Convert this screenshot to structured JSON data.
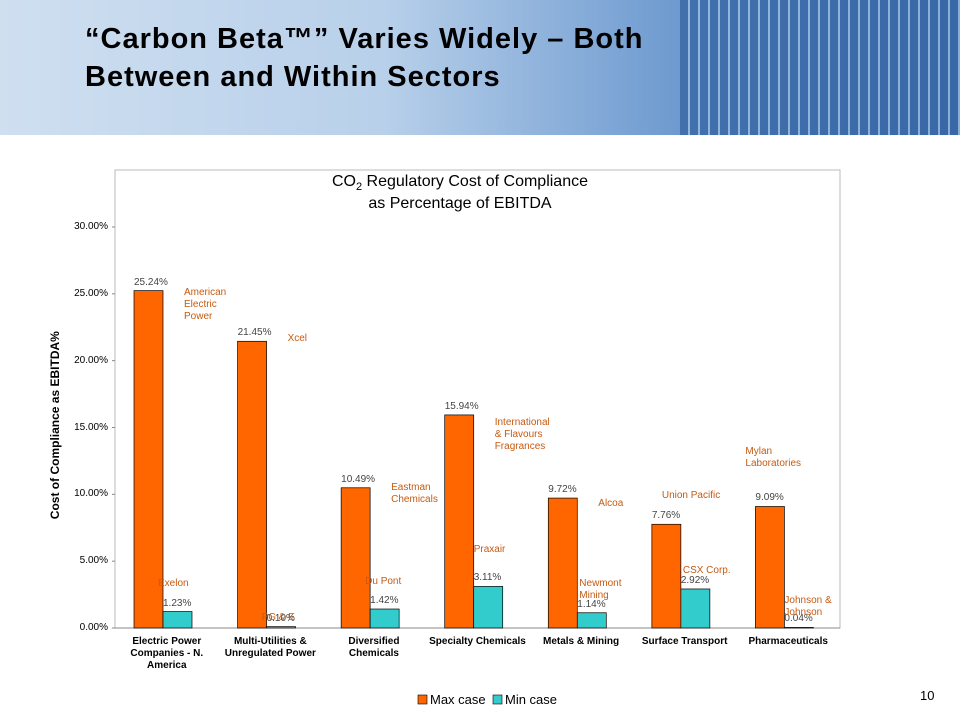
{
  "slide": {
    "heading": [
      "“Carbon Beta™” Varies Widely – Both",
      "Between and Within Sectors"
    ],
    "page_number": "10"
  },
  "chart_data": {
    "type": "bar",
    "title": [
      "CO",
      "2",
      " Regulatory Cost of Compliance",
      "as Percentage of EBITDA"
    ],
    "y_label": "Cost of Compliance as EBITDA%",
    "categories": [
      "Electric Power Companies - N. America",
      "Multi-Utilities & Unregulated Power",
      "Diversified Chemicals",
      "Specialty Chemicals",
      "Metals & Mining",
      "Surface Transport",
      "Pharmaceuticals"
    ],
    "series": [
      {
        "name": "Max case",
        "color": "#ff6600",
        "values": [
          25.24,
          21.45,
          10.49,
          15.94,
          9.72,
          7.76,
          9.09
        ],
        "value_labels": [
          "25.24%",
          "21.45%",
          "10.49%",
          "15.94%",
          "9.72%",
          "7.76%",
          "9.09%"
        ],
        "companies": [
          "American Electric Power",
          "Xcel",
          "Eastman Chemicals",
          "International & Flavours Fragrances",
          "Alcoa",
          "Union Pacific",
          "Mylan Laboratories"
        ]
      },
      {
        "name": "Min case",
        "color": "#33cccc",
        "values": [
          1.23,
          0.1,
          1.42,
          3.11,
          1.14,
          2.92,
          0.04
        ],
        "value_labels": [
          "1.23%",
          "0.10%",
          "1.42%",
          "3.11%",
          "1.14%",
          "2.92%",
          "0.04%"
        ],
        "companies": [
          "Exelon",
          "PG & E",
          "Du Pont",
          "Praxair",
          "Newmont Mining",
          "CSX Corp.",
          "Johnson & Johnson"
        ]
      }
    ],
    "ylim": [
      0,
      30
    ],
    "yticks": [
      {
        "value": 0,
        "label": "0.00%"
      },
      {
        "value": 5,
        "label": "5.00%"
      },
      {
        "value": 10,
        "label": "10.00%"
      },
      {
        "value": 15,
        "label": "15.00%"
      },
      {
        "value": 20,
        "label": "20.00%"
      },
      {
        "value": 25,
        "label": "25.00%"
      },
      {
        "value": 30,
        "label": "30.00%"
      }
    ]
  }
}
